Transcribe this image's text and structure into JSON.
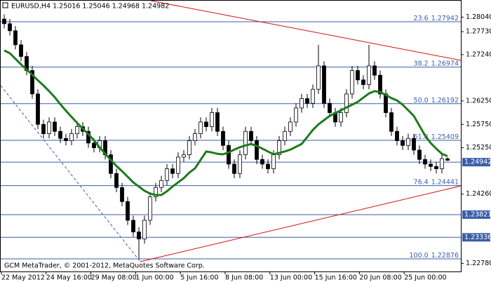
{
  "chart_data": {
    "type": "candlestick",
    "title": "EURUSD,H4  1.25016 1.25046 1.24968 1.24982",
    "footer": "GCM MetaTrader, © 2001-2012, MetaQuotes Software Corp.",
    "up_color": "#ffffff",
    "down_color": "#000000",
    "line_color": "#3b5ea8",
    "ylim": [
      1.22591,
      1.28407
    ],
    "yticks": [
      {
        "value": 1.2804,
        "label": "1.28040"
      },
      {
        "value": 1.2773,
        "label": "1.27730"
      },
      {
        "value": 1.2724,
        "label": "1.27240"
      },
      {
        "value": 1.2625,
        "label": "1.26250"
      },
      {
        "value": 1.2575,
        "label": "1.25750"
      },
      {
        "value": 1.2525,
        "label": "1.25250"
      },
      {
        "value": 1.2426,
        "label": "1.24260"
      },
      {
        "value": 1.2278,
        "label": "1.22780"
      }
    ],
    "xticks": [
      "22 May 2012",
      "24 May 16:00",
      "29 May 08:00",
      "1 Jun 00:00",
      "5 Jun 16:00",
      "8 Jun 08:00",
      "13 Jun 00:00",
      "15 Jun 16:00",
      "20 Jun 08:00",
      "25 Jun 00:00"
    ],
    "fib_levels": [
      {
        "label": "23.6",
        "value": 1.27942
      },
      {
        "label": "38.2",
        "value": 1.26974
      },
      {
        "label": "50.0",
        "value": 1.26192
      },
      {
        "label": "61.8",
        "value": 1.25409
      },
      {
        "label": "76.4",
        "value": 1.24441
      },
      {
        "label": "100.0",
        "value": 1.22876
      }
    ],
    "price_lines": [
      1.24942,
      1.23821,
      1.23336
    ],
    "open": [
      1.28,
      1.279,
      1.2775,
      1.2745,
      1.272,
      1.269,
      1.264,
      1.2575,
      1.2555,
      1.258,
      1.256,
      1.2545,
      1.254,
      1.2555,
      1.257,
      1.256,
      1.2535,
      1.2525,
      1.254,
      1.251,
      1.247,
      1.244,
      1.241,
      1.237,
      1.2345,
      1.233,
      1.237,
      1.242,
      1.244,
      1.2455,
      1.248,
      1.247,
      1.2505,
      1.251,
      1.254,
      1.2555,
      1.258,
      1.257,
      1.26,
      1.256,
      1.253,
      1.249,
      1.247,
      1.251,
      1.256,
      1.254,
      1.25,
      1.249,
      1.248,
      1.251,
      1.254,
      1.256,
      1.258,
      1.261,
      1.263,
      1.262,
      1.265,
      1.27,
      1.262,
      1.26,
      1.258,
      1.26,
      1.264,
      1.269,
      1.267,
      1.266,
      1.27,
      1.268,
      1.264,
      1.26,
      1.256,
      1.254,
      1.253,
      1.2545,
      1.252,
      1.25,
      1.249,
      1.2485,
      1.248,
      1.25016
    ],
    "high": [
      1.281,
      1.28,
      1.2785,
      1.2755,
      1.273,
      1.27,
      1.265,
      1.2585,
      1.259,
      1.259,
      1.257,
      1.2555,
      1.2565,
      1.258,
      1.258,
      1.257,
      1.2545,
      1.255,
      1.255,
      1.252,
      1.248,
      1.245,
      1.242,
      1.238,
      1.2355,
      1.238,
      1.243,
      1.245,
      1.2465,
      1.249,
      1.249,
      1.2515,
      1.252,
      1.255,
      1.2565,
      1.259,
      1.259,
      1.261,
      1.261,
      1.257,
      1.254,
      1.25,
      1.252,
      1.257,
      1.257,
      1.255,
      1.251,
      1.25,
      1.252,
      1.255,
      1.257,
      1.259,
      1.262,
      1.264,
      1.264,
      1.266,
      1.2745,
      1.271,
      1.263,
      1.261,
      1.261,
      1.265,
      1.27,
      1.27,
      1.268,
      1.2745,
      1.271,
      1.269,
      1.265,
      1.261,
      1.257,
      1.255,
      1.2555,
      1.2555,
      1.253,
      1.251,
      1.25,
      1.2495,
      1.2512,
      1.25046
    ],
    "low": [
      1.278,
      1.2765,
      1.2735,
      1.271,
      1.268,
      1.263,
      1.2565,
      1.2545,
      1.2545,
      1.255,
      1.2535,
      1.253,
      1.253,
      1.2545,
      1.255,
      1.2525,
      1.2515,
      1.2515,
      1.25,
      1.246,
      1.243,
      1.24,
      1.236,
      1.2335,
      1.22876,
      1.232,
      1.236,
      1.241,
      1.243,
      1.2445,
      1.246,
      1.246,
      1.2495,
      1.25,
      1.253,
      1.2545,
      1.256,
      1.256,
      1.255,
      1.252,
      1.248,
      1.246,
      1.246,
      1.25,
      1.253,
      1.249,
      1.248,
      1.247,
      1.247,
      1.25,
      1.253,
      1.255,
      1.257,
      1.26,
      1.261,
      1.261,
      1.264,
      1.261,
      1.259,
      1.257,
      1.257,
      1.259,
      1.263,
      1.266,
      1.265,
      1.265,
      1.267,
      1.263,
      1.259,
      1.255,
      1.253,
      1.252,
      1.252,
      1.251,
      1.249,
      1.248,
      1.2475,
      1.247,
      1.247,
      1.24968
    ],
    "close": [
      1.279,
      1.2775,
      1.2745,
      1.272,
      1.269,
      1.264,
      1.2575,
      1.2555,
      1.258,
      1.256,
      1.2545,
      1.254,
      1.2555,
      1.257,
      1.256,
      1.2535,
      1.2525,
      1.254,
      1.251,
      1.247,
      1.244,
      1.241,
      1.237,
      1.2345,
      1.233,
      1.237,
      1.242,
      1.244,
      1.2455,
      1.248,
      1.247,
      1.2505,
      1.251,
      1.254,
      1.2555,
      1.258,
      1.257,
      1.26,
      1.256,
      1.253,
      1.249,
      1.247,
      1.251,
      1.256,
      1.254,
      1.25,
      1.249,
      1.248,
      1.251,
      1.254,
      1.256,
      1.258,
      1.261,
      1.263,
      1.262,
      1.265,
      1.27,
      1.262,
      1.26,
      1.258,
      1.26,
      1.264,
      1.269,
      1.267,
      1.266,
      1.27,
      1.268,
      1.264,
      1.26,
      1.256,
      1.254,
      1.253,
      1.2545,
      1.252,
      1.25,
      1.249,
      1.2485,
      1.248,
      1.25016,
      1.24982
    ],
    "ma": {
      "color": "#1e7a1e",
      "values": [
        1.2733,
        1.2727,
        1.2715,
        1.2703,
        1.2692,
        1.2681,
        1.2669,
        1.2658,
        1.2646,
        1.2633,
        1.2618,
        1.2604,
        1.2591,
        1.2578,
        1.2566,
        1.2554,
        1.2541,
        1.2526,
        1.2512,
        1.2499,
        1.2486,
        1.2475,
        1.2463,
        1.2451,
        1.2442,
        1.2433,
        1.2427,
        1.2424,
        1.2424,
        1.2432,
        1.2442,
        1.2451,
        1.246,
        1.2472,
        1.2481,
        1.2499,
        1.2517,
        1.2515,
        1.2512,
        1.2511,
        1.2515,
        1.2521,
        1.2526,
        1.253,
        1.2533,
        1.2529,
        1.2523,
        1.2517,
        1.2511,
        1.2514,
        1.2517,
        1.2521,
        1.2527,
        1.2533,
        1.2548,
        1.2563,
        1.2575,
        1.2584,
        1.2593,
        1.2599,
        1.2605,
        1.2611,
        1.2617,
        1.2623,
        1.2632,
        1.2641,
        1.2646,
        1.2644,
        1.2638,
        1.2631,
        1.2626,
        1.2617,
        1.2605,
        1.2593,
        1.2572,
        1.2551,
        1.2535,
        1.2523,
        1.2512,
        1.2507
      ]
    }
  }
}
